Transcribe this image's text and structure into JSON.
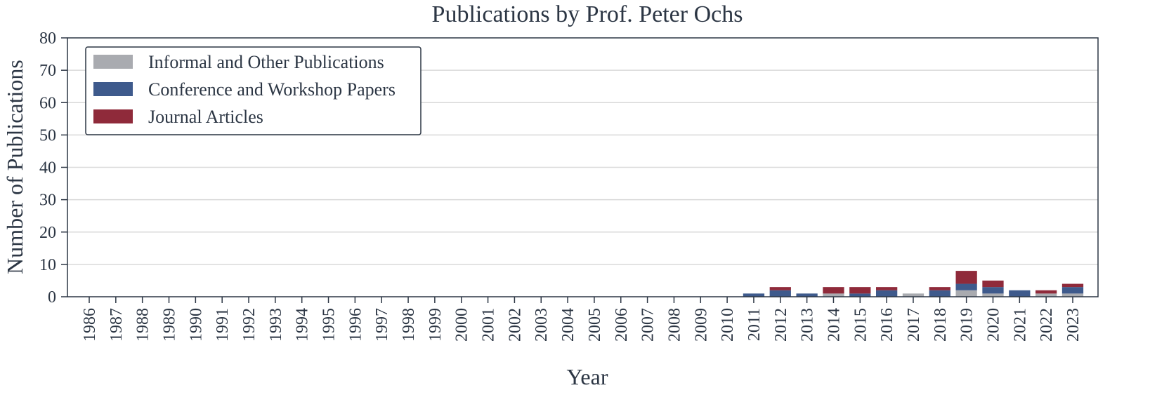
{
  "chart_data": {
    "type": "bar",
    "stacked": true,
    "title": "Publications by Prof. Peter Ochs",
    "xlabel": "Year",
    "ylabel": "Number of Publications",
    "ylim": [
      0,
      80
    ],
    "yticks": [
      0,
      10,
      20,
      30,
      40,
      50,
      60,
      70,
      80
    ],
    "grid": "horizontal",
    "legend_position": "top-left",
    "categories": [
      "1986",
      "1987",
      "1988",
      "1989",
      "1990",
      "1991",
      "1992",
      "1993",
      "1994",
      "1995",
      "1996",
      "1997",
      "1998",
      "1999",
      "2000",
      "2001",
      "2002",
      "2003",
      "2004",
      "2005",
      "2006",
      "2007",
      "2008",
      "2009",
      "2010",
      "2011",
      "2012",
      "2013",
      "2014",
      "2015",
      "2016",
      "2017",
      "2018",
      "2019",
      "2020",
      "2021",
      "2022",
      "2023"
    ],
    "series": [
      {
        "name": "Informal and Other Publications",
        "color": "#a9abb0",
        "values": [
          0,
          0,
          0,
          0,
          0,
          0,
          0,
          0,
          0,
          0,
          0,
          0,
          0,
          0,
          0,
          0,
          0,
          0,
          0,
          0,
          0,
          0,
          0,
          0,
          0,
          0,
          0,
          0,
          1,
          0,
          0,
          1,
          0,
          2,
          1,
          0,
          1,
          1
        ]
      },
      {
        "name": "Conference and Workshop Papers",
        "color": "#3e5a8c",
        "values": [
          0,
          0,
          0,
          0,
          0,
          0,
          0,
          0,
          0,
          0,
          0,
          0,
          0,
          0,
          0,
          0,
          0,
          0,
          0,
          0,
          0,
          0,
          0,
          0,
          0,
          1,
          2,
          1,
          0,
          1,
          2,
          0,
          2,
          2,
          2,
          2,
          0,
          2
        ]
      },
      {
        "name": "Journal Articles",
        "color": "#8f2a3a",
        "values": [
          0,
          0,
          0,
          0,
          0,
          0,
          0,
          0,
          0,
          0,
          0,
          0,
          0,
          0,
          0,
          0,
          0,
          0,
          0,
          0,
          0,
          0,
          0,
          0,
          0,
          0,
          1,
          0,
          2,
          2,
          1,
          0,
          1,
          4,
          2,
          0,
          1,
          1
        ]
      }
    ]
  }
}
